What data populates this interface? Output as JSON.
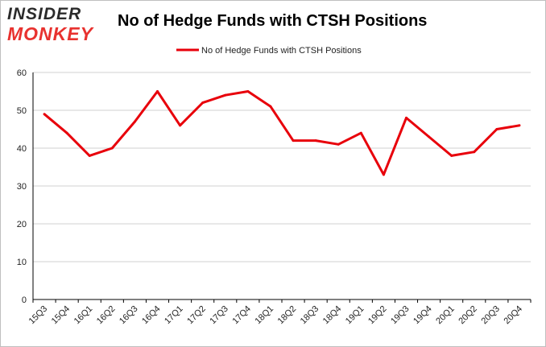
{
  "logo": {
    "line1": "INSIDER",
    "line2": "MONKEY"
  },
  "colors": {
    "series": "#e8000b",
    "grid": "#d0d0d0",
    "axis": "#000000",
    "logo_accent": "#e8322f"
  },
  "chart_data": {
    "type": "line",
    "title": "No of Hedge Funds with CTSH Positions",
    "xlabel": "",
    "ylabel": "",
    "x": [
      "15Q3",
      "15Q4",
      "16Q1",
      "16Q2",
      "16Q3",
      "16Q4",
      "17Q1",
      "17Q2",
      "17Q3",
      "17Q4",
      "18Q1",
      "18Q2",
      "18Q3",
      "18Q4",
      "19Q1",
      "19Q2",
      "19Q3",
      "19Q4",
      "20Q1",
      "20Q2",
      "20Q3",
      "20Q4"
    ],
    "series": [
      {
        "name": "No of Hedge Funds with CTSH Positions",
        "values": [
          49,
          44,
          38,
          40,
          47,
          55,
          46,
          52,
          54,
          55,
          51,
          42,
          42,
          41,
          44,
          33,
          48,
          43,
          38,
          39,
          45,
          46
        ]
      }
    ],
    "ylim": [
      0,
      60
    ],
    "yticks": [
      0,
      10,
      20,
      30,
      40,
      50,
      60
    ],
    "grid": true,
    "legend": "top-center"
  }
}
